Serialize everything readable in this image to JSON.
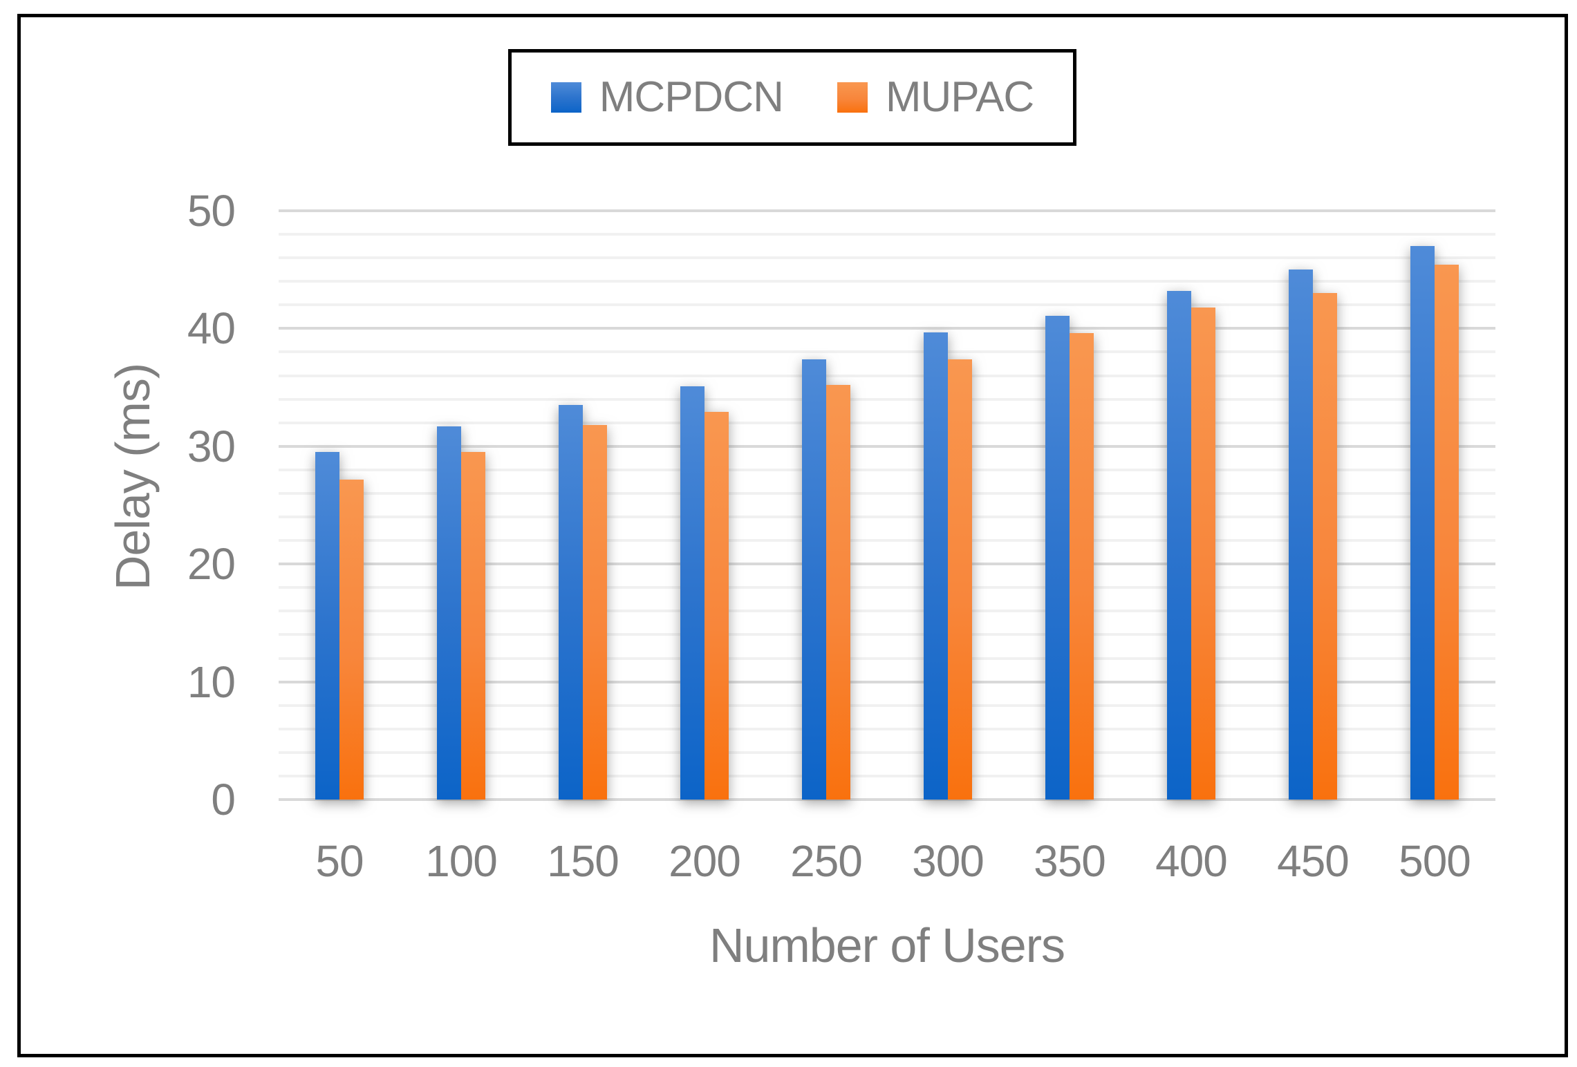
{
  "legend": {
    "items": [
      {
        "label": "MCPDCN",
        "color": "#2d74cd"
      },
      {
        "label": "MUPAC",
        "color": "#f8863b"
      }
    ]
  },
  "chart_data": {
    "type": "bar",
    "title": "",
    "xlabel": "Number of Users",
    "ylabel": "Delay (ms)",
    "categories": [
      "50",
      "100",
      "150",
      "200",
      "250",
      "300",
      "350",
      "400",
      "450",
      "500"
    ],
    "series": [
      {
        "name": "MCPDCN",
        "color": "#2d74cd",
        "gradient": {
          "top": "#4f8bd8",
          "bottom": "#0c64c8"
        },
        "values": [
          29.5,
          31.7,
          33.5,
          35.1,
          37.4,
          39.7,
          41.1,
          43.2,
          45.0,
          47.0
        ]
      },
      {
        "name": "MUPAC",
        "color": "#f8863b",
        "gradient": {
          "top": "#f99750",
          "bottom": "#f9710e"
        },
        "values": [
          27.2,
          29.5,
          31.8,
          32.9,
          35.2,
          37.4,
          39.6,
          41.8,
          43.0,
          45.4
        ]
      }
    ],
    "ylim": [
      0,
      50
    ],
    "yticks": [
      "0",
      "10",
      "20",
      "30",
      "40",
      "50"
    ],
    "ytick_values": [
      0,
      10,
      20,
      30,
      40,
      50
    ],
    "minor_unit": 2,
    "major_unit": 10,
    "grid": "on",
    "legend_position": "top-center",
    "gridline_minor_color": "#f1f1f1",
    "gridline_major_color": "#d9d9d9",
    "axis_text_color": "#7f7f7f"
  }
}
